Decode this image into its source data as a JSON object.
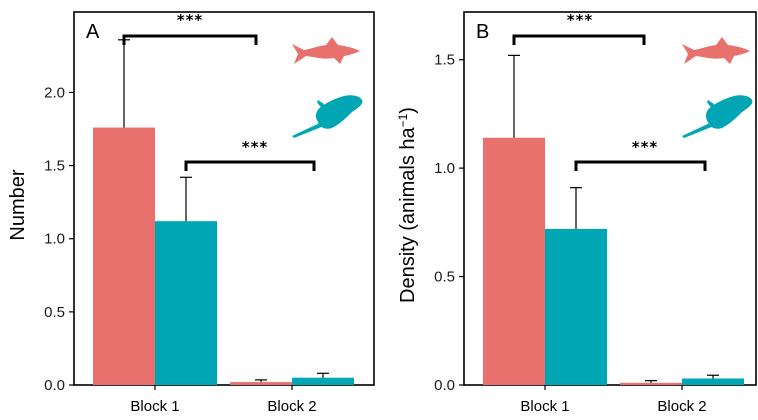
{
  "colors": {
    "shark": "#e8716e",
    "ray": "#00a6b4"
  },
  "icons": [
    "shark-icon",
    "stingray-icon"
  ],
  "chart_data": [
    {
      "type": "bar",
      "panel_label": "A",
      "ylabel": "Number",
      "ylim": [
        0,
        2.55
      ],
      "yticks": [
        0.0,
        0.5,
        1.0,
        1.5,
        2.0
      ],
      "ytick_labels": [
        "0.0",
        "0.5",
        "1.0",
        "1.5",
        "2.0"
      ],
      "categories": [
        "Block 1",
        "Block 2"
      ],
      "series": [
        {
          "values": [
            1.76,
            0.02
          ],
          "errors": [
            0.6,
            0.015
          ]
        },
        {
          "values": [
            1.12,
            0.05
          ],
          "errors": [
            0.3,
            0.03
          ]
        }
      ],
      "significance": [
        "***",
        "***"
      ]
    },
    {
      "type": "bar",
      "panel_label": "B",
      "ylabel": "Density (animals ha",
      "ylabel_sup": "−1",
      "ylabel_close": ")",
      "ylim": [
        0,
        1.72
      ],
      "yticks": [
        0.0,
        0.5,
        1.0,
        1.5
      ],
      "ytick_labels": [
        "0.0",
        "0.5",
        "1.0",
        "1.5"
      ],
      "categories": [
        "Block 1",
        "Block 2"
      ],
      "series": [
        {
          "values": [
            1.14,
            0.01
          ],
          "errors": [
            0.38,
            0.01
          ]
        },
        {
          "values": [
            0.72,
            0.03
          ],
          "errors": [
            0.19,
            0.015
          ]
        }
      ],
      "significance": [
        "***",
        "***"
      ]
    }
  ]
}
